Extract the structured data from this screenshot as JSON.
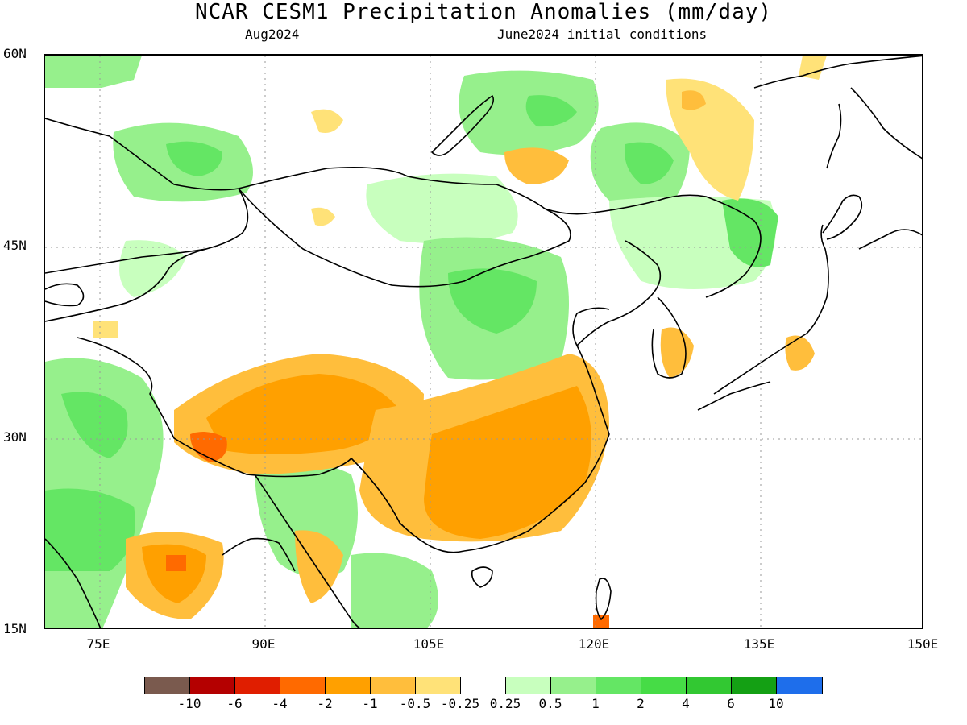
{
  "title": "NCAR_CESM1 Precipitation Anomalies (mm/day)",
  "subtitle_left": "Aug2024",
  "subtitle_right": "June2024 initial conditions",
  "axes": {
    "lat_labels": [
      "60N",
      "45N",
      "30N",
      "15N"
    ],
    "lon_labels": [
      "75E",
      "90E",
      "105E",
      "120E",
      "135E",
      "150E"
    ],
    "lat_range": [
      15,
      60
    ],
    "lon_range": [
      70,
      150
    ],
    "grid": "dotted"
  },
  "colorbar": {
    "colors": [
      "#7a5a4e",
      "#b40000",
      "#e01e00",
      "#ff6a00",
      "#ffa000",
      "#ffbe3c",
      "#ffe278",
      "#ffffff",
      "#c8ffbe",
      "#96f08c",
      "#64e664",
      "#46dc46",
      "#32c832",
      "#14a014",
      "#1e6eeb"
    ],
    "labels": [
      "-10",
      "-6",
      "-4",
      "-2",
      "-1",
      "-0.5",
      "-0.25",
      "0.25",
      "0.5",
      "1",
      "2",
      "4",
      "6",
      "10"
    ]
  },
  "anomaly_regions": [
    {
      "name": "west-siberia-wet",
      "color": "#96f08c"
    },
    {
      "name": "baikal-wet",
      "color": "#96f08c"
    },
    {
      "name": "mongolia-wet",
      "color": "#96f08c"
    },
    {
      "name": "northeast-china-wet",
      "color": "#96f08c"
    },
    {
      "name": "north-china-wet",
      "color": "#c8ffbe"
    },
    {
      "name": "india-wet",
      "color": "#96f08c"
    },
    {
      "name": "bangladesh-myanmar-wet",
      "color": "#96f08c"
    },
    {
      "name": "tibet-dry",
      "color": "#ffa000"
    },
    {
      "name": "south-china-dry",
      "color": "#ffa000"
    },
    {
      "name": "india-east-dry",
      "color": "#ffa000"
    },
    {
      "name": "okhotsk-dry",
      "color": "#ffe278"
    },
    {
      "name": "japan-dry",
      "color": "#ffbe3c"
    },
    {
      "name": "korea-dry",
      "color": "#ffbe3c"
    }
  ]
}
